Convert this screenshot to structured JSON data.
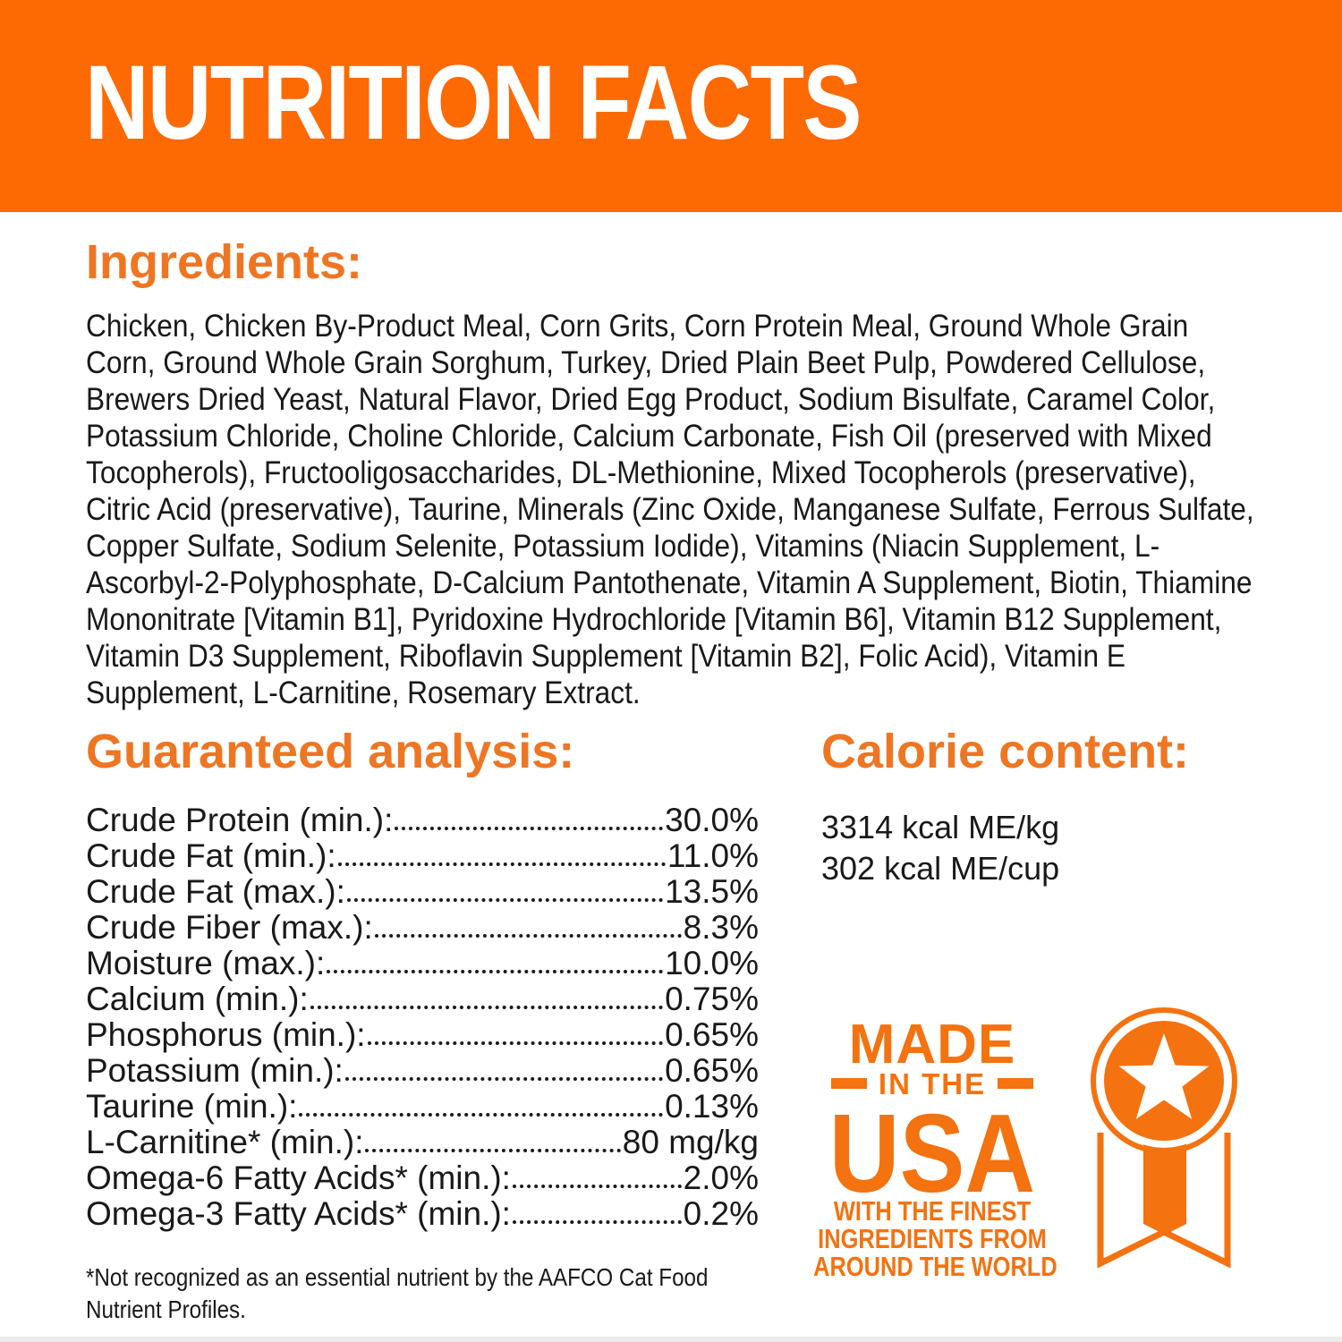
{
  "banner": {
    "title": "NUTRITION FACTS",
    "bg_color": "#fd6903",
    "text_color": "#ffffff"
  },
  "colors": {
    "heading_orange": "#ee7623",
    "badge_orange": "#f4720f",
    "body_text": "#191919"
  },
  "ingredients": {
    "heading": "Ingredients:",
    "text": "Chicken, Chicken By-Product Meal, Corn Grits, Corn Protein Meal, Ground Whole Grain Corn, Ground Whole Grain Sorghum, Turkey, Dried Plain Beet Pulp, Powdered Cellulose, Brewers Dried Yeast, Natural Flavor, Dried Egg Product, Sodium Bisulfate, Caramel Color, Potassium Chloride, Choline Chloride, Calcium Carbonate, Fish Oil (preserved with Mixed Tocopherols), Fructooligosaccharides, DL-Methionine, Mixed Tocopherols (preservative), Citric Acid (preservative), Taurine, Minerals (Zinc Oxide, Manganese Sulfate, Ferrous Sulfate, Copper Sulfate, Sodium Selenite, Potassium Iodide), Vitamins (Niacin Supplement, L-Ascorbyl-2-Polyphosphate, D-Calcium Pantothenate, Vitamin A Supplement, Biotin, Thiamine Mononitrate [Vitamin B1], Pyridoxine Hydrochloride [Vitamin B6], Vitamin B12 Supplement, Vitamin D3 Supplement, Riboflavin Supplement [Vitamin B2], Folic Acid), Vitamin E Supplement, L-Carnitine, Rosemary Extract."
  },
  "guaranteed_analysis": {
    "heading": "Guaranteed analysis:",
    "rows": [
      {
        "label": "Crude Protein (min.):",
        "value": "30.0%"
      },
      {
        "label": "Crude Fat (min.):",
        "value": "11.0%"
      },
      {
        "label": "Crude Fat (max.):",
        "value": "13.5%"
      },
      {
        "label": "Crude Fiber (max.):",
        "value": "8.3%"
      },
      {
        "label": "Moisture (max.):",
        "value": "10.0%"
      },
      {
        "label": "Calcium (min.):",
        "value": "0.75%"
      },
      {
        "label": "Phosphorus (min.):",
        "value": "0.65%"
      },
      {
        "label": "Potassium (min.):",
        "value": "0.65%"
      },
      {
        "label": "Taurine (min.):",
        "value": "0.13%"
      },
      {
        "label": "L-Carnitine* (min.):",
        "value": "80 mg/kg"
      },
      {
        "label": "Omega-6 Fatty Acids* (min.):",
        "value": "2.0%"
      },
      {
        "label": "Omega-3 Fatty Acids* (min.):",
        "value": "0.2%"
      }
    ],
    "footnote": "*Not recognized as an essential nutrient by the AAFCO Cat Food Nutrient Profiles."
  },
  "calorie_content": {
    "heading": "Calorie content:",
    "lines": [
      "3314 kcal ME/kg",
      "302 kcal ME/cup"
    ]
  },
  "made_in_usa": {
    "line1": "MADE",
    "line2": "IN THE",
    "line3": "USA",
    "tagline1": "WITH THE FINEST",
    "tagline2": "INGREDIENTS FROM",
    "tagline3": "AROUND THE WORLD",
    "icon": "award-ribbon-icon"
  }
}
